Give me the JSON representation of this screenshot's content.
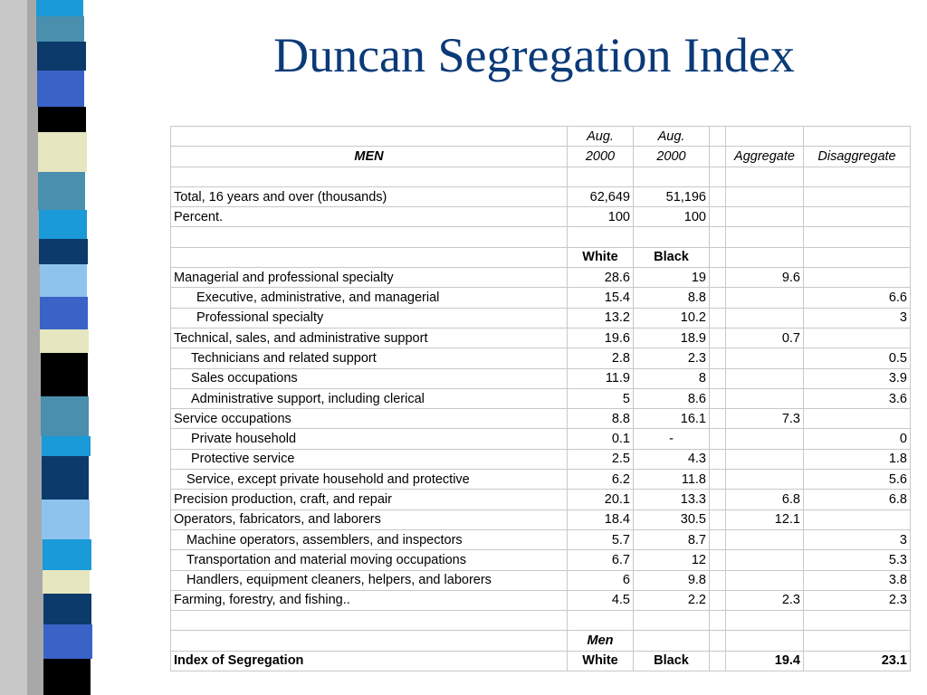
{
  "title": "Duncan Segregation Index",
  "table": {
    "header": {
      "row1": {
        "c1": "Aug.",
        "c2": "Aug."
      },
      "row2": {
        "label": "MEN",
        "c1": "2000",
        "c2": "2000",
        "c4": "Aggregate",
        "c5": "Disaggregate"
      }
    },
    "total": {
      "label": "Total, 16 years and over (thousands)",
      "c1": "62,649",
      "c2": "51,196"
    },
    "percent": {
      "label": "Percent.",
      "c1": "100",
      "c2": "100"
    },
    "race_header": {
      "c1": "White",
      "c2": "Black"
    },
    "rows": [
      {
        "label": "Managerial and professional specialty",
        "white": "28.6",
        "black": "19",
        "aggregate": "9.6",
        "disaggregate": ""
      },
      {
        "label": "Executive, administrative, and managerial",
        "white": "15.4",
        "black": "8.8",
        "aggregate": "",
        "disaggregate": "6.6"
      },
      {
        "label": "Professional specialty",
        "white": "13.2",
        "black": "10.2",
        "aggregate": "",
        "disaggregate": "3"
      },
      {
        "label": "Technical, sales, and administrative support",
        "white": "19.6",
        "black": "18.9",
        "aggregate": "0.7",
        "disaggregate": ""
      },
      {
        "label": "Technicians and related support",
        "white": "2.8",
        "black": "2.3",
        "aggregate": "",
        "disaggregate": "0.5"
      },
      {
        "label": "Sales occupations",
        "white": "11.9",
        "black": "8",
        "aggregate": "",
        "disaggregate": "3.9"
      },
      {
        "label": "Administrative support, including clerical",
        "white": "5",
        "black": "8.6",
        "aggregate": "",
        "disaggregate": "3.6"
      },
      {
        "label": "Service occupations",
        "white": "8.8",
        "black": "16.1",
        "aggregate": "7.3",
        "disaggregate": ""
      },
      {
        "label": "Private household",
        "white": "0.1",
        "black": "-",
        "aggregate": "",
        "disaggregate": "0"
      },
      {
        "label": "Protective service",
        "white": "2.5",
        "black": "4.3",
        "aggregate": "",
        "disaggregate": "1.8"
      },
      {
        "label": "Service, except private household and protective",
        "white": "6.2",
        "black": "11.8",
        "aggregate": "",
        "disaggregate": "5.6"
      },
      {
        "label": "Precision production, craft, and repair",
        "white": "20.1",
        "black": "13.3",
        "aggregate": "6.8",
        "disaggregate": "6.8"
      },
      {
        "label": "Operators, fabricators, and laborers",
        "white": "18.4",
        "black": "30.5",
        "aggregate": "12.1",
        "disaggregate": ""
      },
      {
        "label": "Machine operators, assemblers, and inspectors",
        "white": "5.7",
        "black": "8.7",
        "aggregate": "",
        "disaggregate": "3"
      },
      {
        "label": "Transportation and material moving occupations",
        "white": "6.7",
        "black": "12",
        "aggregate": "",
        "disaggregate": "5.3"
      },
      {
        "label": "Handlers, equipment cleaners, helpers, and laborers",
        "white": "6",
        "black": "9.8",
        "aggregate": "",
        "disaggregate": "3.8"
      },
      {
        "label": "Farming, forestry, and fishing..",
        "white": "4.5",
        "black": "2.2",
        "aggregate": "2.3",
        "disaggregate": "2.3"
      }
    ],
    "men_label": "Men",
    "index": {
      "label": "Index of Segregation",
      "white": "White",
      "black": "Black",
      "aggregate": "19.4",
      "disaggregate": "23.1"
    }
  },
  "colors": {
    "title": "#0a3a78",
    "strip_navy": "#0b3a6b",
    "strip_teal": "#4a8fae",
    "strip_blue": "#3a63c8",
    "strip_cyan": "#1a9ad6",
    "strip_cream": "#e6e6c0",
    "strip_black": "#000000",
    "strip_light": "#8ec3ee"
  }
}
